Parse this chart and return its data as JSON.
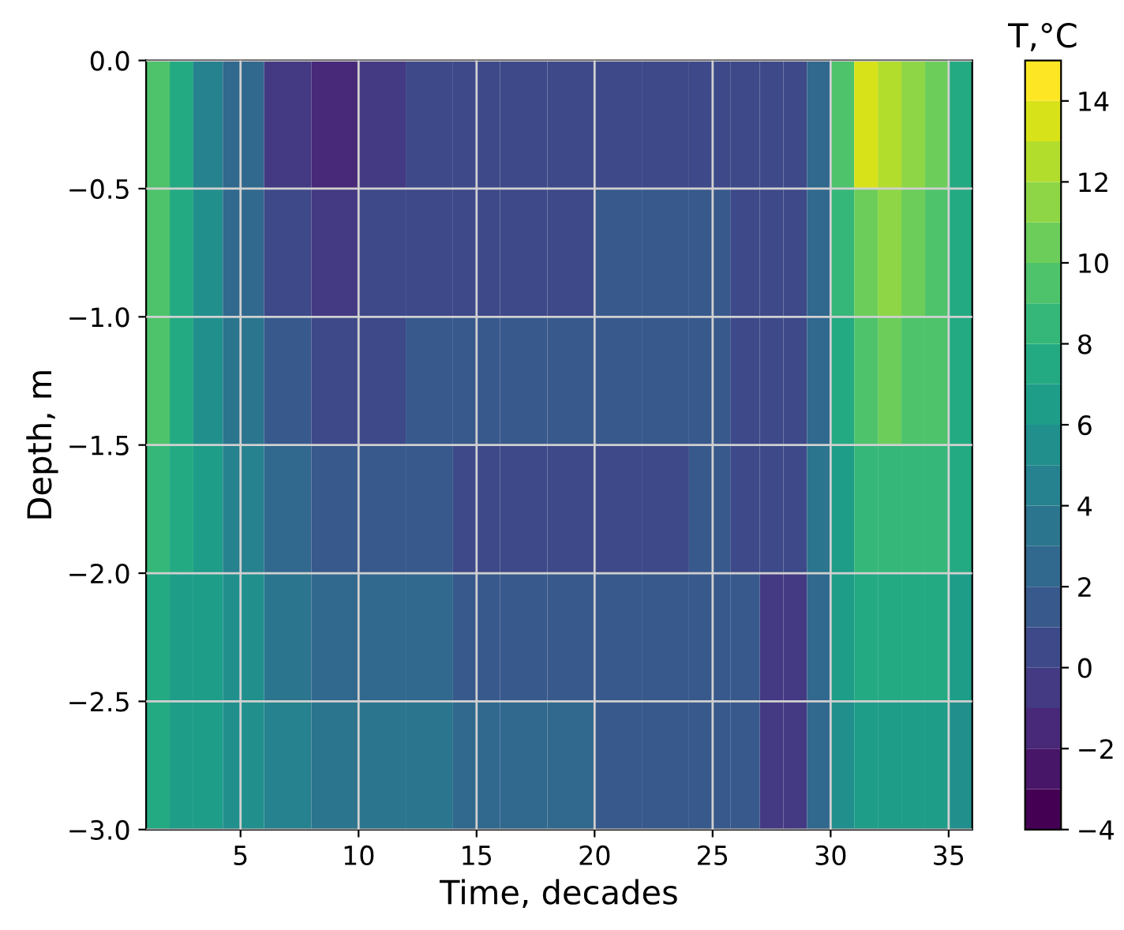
{
  "chart_data": {
    "type": "heatmap",
    "xlabel": "Time, decades",
    "ylabel": "Depth, m",
    "clabel": "T,°C",
    "x": [
      1.5,
      2.5,
      3.5,
      5,
      7,
      9,
      11,
      13,
      15,
      17,
      19,
      21,
      23,
      25,
      26.5,
      27.5,
      28.5,
      29.5,
      30.5,
      31.5,
      32.5,
      33.5,
      34.5,
      35.5
    ],
    "y": [
      -0.25,
      -0.75,
      -1.25,
      -1.75,
      -2.25,
      -2.75
    ],
    "cells": [
      [
        9,
        7,
        4,
        2,
        -1,
        -2,
        -1,
        0,
        0,
        0,
        0,
        0,
        0,
        0,
        0,
        0,
        0,
        2,
        9,
        13,
        12,
        11,
        10,
        7
      ],
      [
        9,
        7,
        5,
        2,
        0,
        -1,
        0,
        0,
        0,
        0,
        0,
        1,
        1,
        1,
        0,
        0,
        0,
        2,
        8,
        10,
        11,
        10,
        9,
        7
      ],
      [
        9,
        7,
        5,
        3,
        1,
        0,
        0,
        1,
        1,
        1,
        1,
        1,
        1,
        1,
        0,
        0,
        0,
        2,
        7,
        9,
        10,
        9,
        9,
        7
      ],
      [
        8,
        7,
        6,
        4,
        2,
        1,
        1,
        1,
        0,
        0,
        0,
        0,
        0,
        1,
        0,
        0,
        0,
        3,
        6,
        8,
        8,
        8,
        8,
        7
      ],
      [
        7,
        6,
        6,
        5,
        3,
        2,
        2,
        2,
        1,
        1,
        1,
        1,
        1,
        1,
        1,
        -1,
        -1,
        2,
        6,
        7,
        7,
        7,
        7,
        6
      ],
      [
        7,
        6,
        6,
        5,
        4,
        3,
        3,
        3,
        2,
        2,
        2,
        1,
        1,
        1,
        1,
        -1,
        -1,
        2,
        5,
        6,
        6,
        6,
        6,
        5
      ]
    ],
    "clim": [
      -4,
      15
    ],
    "cticks": [
      {
        "value": -4,
        "label": "−4"
      },
      {
        "value": -2,
        "label": "−2"
      },
      0,
      2,
      4,
      6,
      8,
      10,
      12,
      14
    ],
    "xlim": [
      1,
      36
    ],
    "xticks": [
      5,
      10,
      15,
      20,
      25,
      30,
      35
    ],
    "ylim": [
      -3,
      0
    ],
    "yticks": [
      {
        "value": 0,
        "label": "0.0"
      },
      {
        "value": -0.5,
        "label": "−0.5"
      },
      {
        "value": -1,
        "label": "−1.0"
      },
      {
        "value": -1.5,
        "label": "−1.5"
      },
      {
        "value": -2,
        "label": "−2.0"
      },
      {
        "value": -2.5,
        "label": "−2.5"
      },
      {
        "value": -3,
        "label": "−3.0"
      }
    ],
    "grid": true
  }
}
